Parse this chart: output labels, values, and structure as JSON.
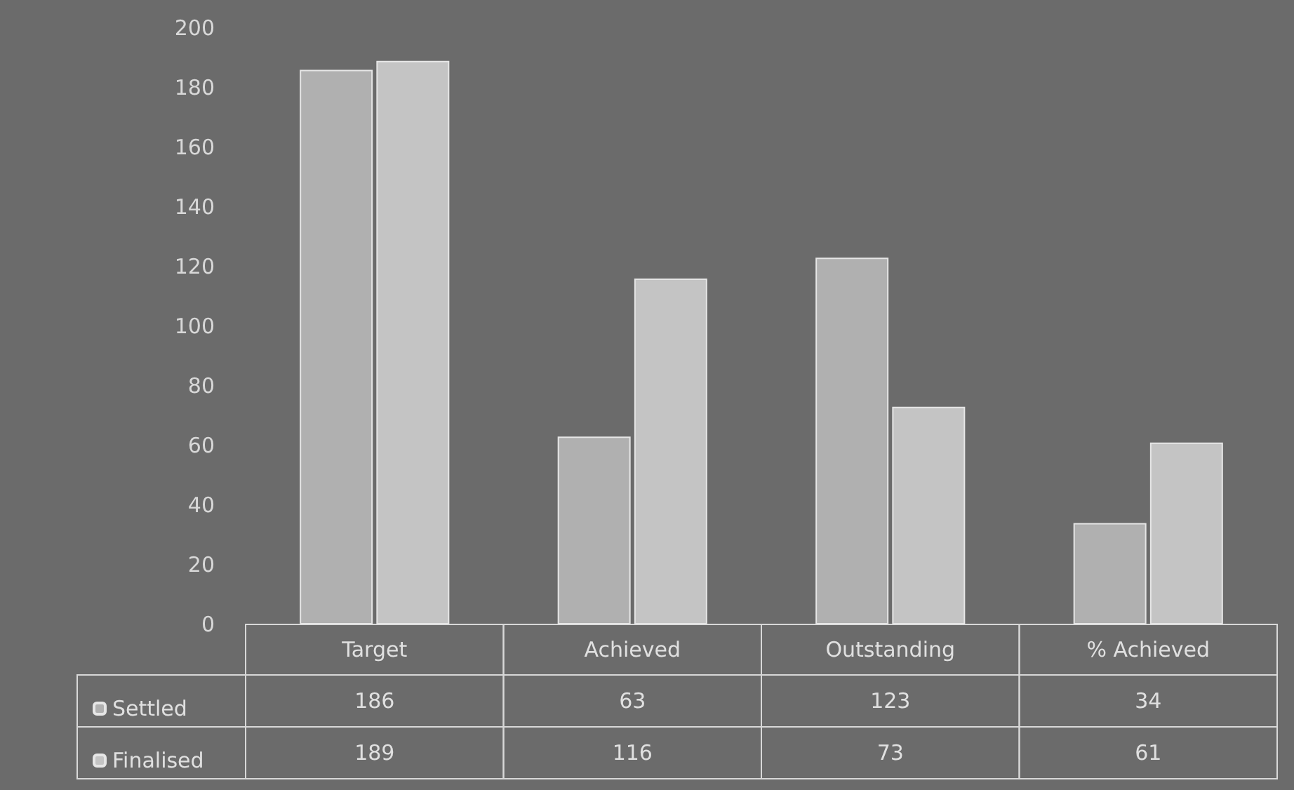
{
  "chart_data": {
    "type": "bar",
    "categories": [
      "Target",
      "Achieved",
      "Outstanding",
      "% Achieved"
    ],
    "series": [
      {
        "name": "Settled",
        "color": "#b0b0b0",
        "values": [
          186,
          63,
          123,
          34
        ]
      },
      {
        "name": "Finalised",
        "color": "#c4c4c4",
        "values": [
          189,
          116,
          73,
          61
        ]
      }
    ],
    "ylim": [
      0,
      200
    ],
    "yticks": [
      0,
      20,
      40,
      60,
      80,
      100,
      120,
      140,
      160,
      180,
      200
    ],
    "grid": false,
    "legend": "bottom left",
    "data_labels": true
  }
}
